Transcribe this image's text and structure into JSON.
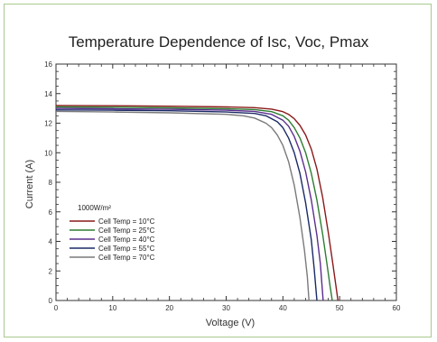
{
  "chart_data": {
    "type": "line",
    "title": "Temperature Dependence of Isc, Voc, Pmax",
    "xlabel": "Voltage (V)",
    "ylabel": "Current (A)",
    "xlim": [
      0,
      60
    ],
    "ylim": [
      0,
      16
    ],
    "xticks": [
      0,
      10,
      20,
      30,
      40,
      50,
      60
    ],
    "yticks": [
      0,
      2,
      4,
      6,
      8,
      10,
      12,
      14,
      16
    ],
    "grid": false,
    "legend": {
      "title": "1000W/m²",
      "placement": "lower-left"
    },
    "series": [
      {
        "name": "Cell Temp = 10°C",
        "color": "#8b1a1a",
        "x": [
          0,
          10,
          20,
          30,
          35,
          38,
          40,
          41,
          42,
          43,
          44,
          45,
          46,
          47,
          48,
          48.8,
          49.3,
          49.7
        ],
        "y": [
          13.2,
          13.18,
          13.15,
          13.1,
          13.05,
          12.95,
          12.78,
          12.6,
          12.3,
          11.85,
          11.2,
          10.25,
          8.9,
          7.0,
          4.6,
          2.5,
          1.1,
          0
        ]
      },
      {
        "name": "Cell Temp = 25°C",
        "color": "#2e7d32",
        "x": [
          0,
          10,
          20,
          30,
          35,
          38,
          40,
          41,
          42,
          43,
          44,
          45,
          46,
          47,
          47.8,
          48.3,
          48.7
        ],
        "y": [
          13.1,
          13.08,
          13.04,
          12.98,
          12.92,
          12.78,
          12.5,
          12.2,
          11.7,
          11.0,
          10.0,
          8.6,
          6.8,
          4.5,
          2.4,
          1.0,
          0
        ]
      },
      {
        "name": "Cell Temp = 40°C",
        "color": "#5b2d8e",
        "x": [
          0,
          10,
          20,
          30,
          35,
          38,
          40,
          41,
          42,
          43,
          44,
          45,
          46,
          46.6,
          47.1
        ],
        "y": [
          13.0,
          12.98,
          12.94,
          12.88,
          12.8,
          12.6,
          12.2,
          11.8,
          11.1,
          10.1,
          8.7,
          6.8,
          4.4,
          2.5,
          0
        ]
      },
      {
        "name": "Cell Temp = 55°C",
        "color": "#1a2a66",
        "x": [
          0,
          10,
          20,
          30,
          35,
          37,
          39,
          40,
          41,
          42,
          43,
          44,
          45,
          45.5,
          46.0
        ],
        "y": [
          12.9,
          12.88,
          12.84,
          12.76,
          12.66,
          12.5,
          12.1,
          11.7,
          11.0,
          10.0,
          8.6,
          6.6,
          4.1,
          2.2,
          0
        ]
      },
      {
        "name": "Cell Temp = 70°C",
        "color": "#7a7a7a",
        "x": [
          0,
          10,
          20,
          30,
          33,
          35,
          37,
          38,
          39,
          40,
          41,
          42,
          43,
          43.8,
          44.3,
          44.6
        ],
        "y": [
          12.8,
          12.76,
          12.7,
          12.6,
          12.5,
          12.35,
          12.0,
          11.7,
          11.2,
          10.5,
          9.4,
          7.8,
          5.6,
          3.4,
          1.6,
          0
        ]
      }
    ]
  }
}
